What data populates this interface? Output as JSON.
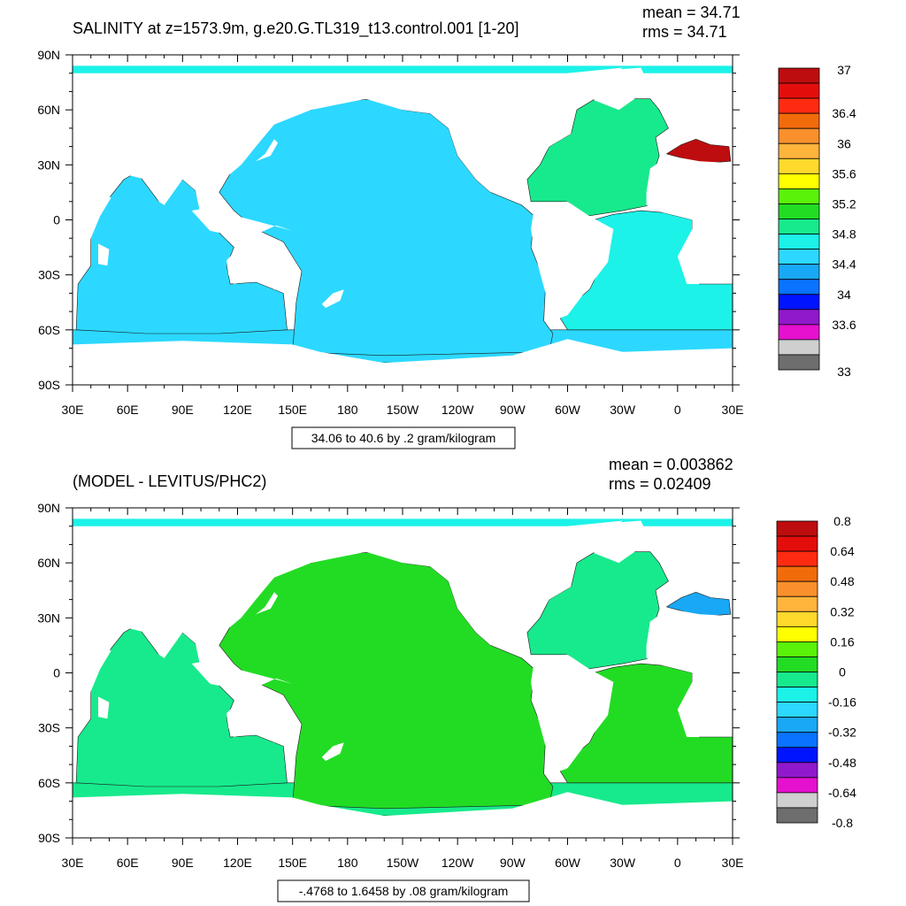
{
  "colors": {
    "land": "#ffffff",
    "frame": "#000000",
    "palette": [
      "#6e6e6e",
      "#cfcfcf",
      "#e511cf",
      "#9019cc",
      "#0014ff",
      "#0a73ff",
      "#19a8f5",
      "#2cd8ff",
      "#1cf2e8",
      "#17ea8c",
      "#22dc24",
      "#5bf20a",
      "#ffff00",
      "#ffd92c",
      "#ffb43c",
      "#f9902b",
      "#f26b0b",
      "#ff2b11",
      "#e30e0c",
      "#be0d0e"
    ]
  },
  "chart_data": [
    {
      "type": "heatmap",
      "title": "SALINITY at z=1573.9m, g.e20.G.TL319_t13.control.001 [1-20]",
      "stats": {
        "mean": "mean = 34.71",
        "rms": "rms = 34.71"
      },
      "x_ticks": [
        "30E",
        "60E",
        "90E",
        "120E",
        "150E",
        "180",
        "150W",
        "120W",
        "90W",
        "60W",
        "30W",
        "0",
        "30E"
      ],
      "y_ticks": [
        "90N",
        "60N",
        "30N",
        "0",
        "30S",
        "60S",
        "90S"
      ],
      "xlim": [
        30,
        390
      ],
      "ylim": [
        -90,
        90
      ],
      "contour_info": "34.06 to 40.6 by .2 gram/kilogram",
      "colorbar": {
        "labels": [
          "37",
          "36.4",
          "36",
          "35.6",
          "35.2",
          "34.8",
          "34.4",
          "34",
          "33.6",
          "33"
        ],
        "range": [
          33,
          37
        ]
      },
      "regions": [
        {
          "name": "pacific",
          "level": 7
        },
        {
          "name": "indian",
          "level": 7
        },
        {
          "name": "southern",
          "level": 7
        },
        {
          "name": "south-atlantic",
          "level": 8
        },
        {
          "name": "north-atlantic",
          "level": 9
        },
        {
          "name": "mediterranean",
          "level": 19
        }
      ]
    },
    {
      "type": "heatmap",
      "title": "(MODEL - LEVITUS/PHC2)",
      "stats": {
        "mean": "mean = 0.003862",
        "rms": "rms = 0.02409"
      },
      "x_ticks": [
        "30E",
        "60E",
        "90E",
        "120E",
        "150E",
        "180",
        "150W",
        "120W",
        "90W",
        "60W",
        "30W",
        "0",
        "30E"
      ],
      "y_ticks": [
        "90N",
        "60N",
        "30N",
        "0",
        "30S",
        "60S",
        "90S"
      ],
      "xlim": [
        30,
        390
      ],
      "ylim": [
        -90,
        90
      ],
      "contour_info": "-.4768 to 1.6458 by .08 gram/kilogram",
      "colorbar": {
        "labels": [
          "0.8",
          "0.64",
          "0.48",
          "0.32",
          "0.16",
          "0",
          "-0.16",
          "-0.32",
          "-0.48",
          "-0.64",
          "-0.8"
        ],
        "range": [
          -0.8,
          0.8
        ]
      },
      "regions": [
        {
          "name": "pacific",
          "level": 10
        },
        {
          "name": "indian",
          "level": 9
        },
        {
          "name": "southern",
          "level": 9
        },
        {
          "name": "south-atlantic",
          "level": 10
        },
        {
          "name": "north-atlantic",
          "level": 9
        },
        {
          "name": "mediterranean",
          "level": 6
        }
      ]
    }
  ]
}
